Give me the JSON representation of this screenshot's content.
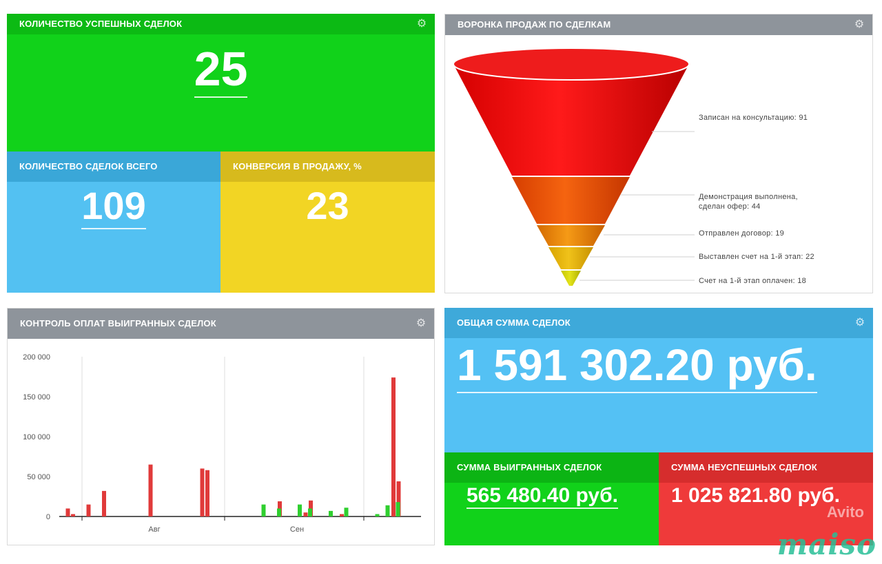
{
  "success_deals": {
    "title": "Количество успешных сделок",
    "value": "25"
  },
  "total_deals": {
    "title": "Количество сделок всего",
    "value": "109"
  },
  "conversion": {
    "title": "Конверсия в продажу, %",
    "value": "23"
  },
  "funnel": {
    "title": "Воронка продаж по сделкам",
    "stages": [
      {
        "label": "Записан на консультацию: 91",
        "value": 91
      },
      {
        "label": "Демонстрация выполнена, сделан офер: 44",
        "value": 44
      },
      {
        "label": "Отправлен договор: 19",
        "value": 19
      },
      {
        "label": "Выставлен счет на 1-й этап: 22",
        "value": 22
      },
      {
        "label": "Счет на 1-й этап оплачен: 18",
        "value": 18
      }
    ]
  },
  "payments": {
    "title": "Контроль оплат выигранных сделок",
    "chart_data": {
      "type": "bar",
      "ylim": [
        0,
        200000
      ],
      "y_ticks": [
        "200 000",
        "150 000",
        "100 000",
        "50 000",
        "0"
      ],
      "x_tick_labels": [
        "Авг",
        "Сен"
      ],
      "series": [
        {
          "color": "#e03a3a",
          "values": [
            [
              1,
              10000
            ],
            [
              2,
              3000
            ],
            [
              5,
              15000
            ],
            [
              8,
              32000
            ],
            [
              17,
              65000
            ],
            [
              27,
              60000
            ],
            [
              28,
              58000
            ],
            [
              41,
              0
            ],
            [
              42,
              19000
            ],
            [
              47,
              5000
            ],
            [
              48,
              20000
            ],
            [
              54,
              3000
            ],
            [
              64,
              174000
            ],
            [
              65,
              44000
            ]
          ]
        },
        {
          "color": "#2fcf2f",
          "values": [
            [
              39,
              15000
            ],
            [
              42,
              10000
            ],
            [
              46,
              15000
            ],
            [
              48,
              10000
            ],
            [
              52,
              7000
            ],
            [
              55,
              11000
            ],
            [
              61,
              3000
            ],
            [
              63,
              14000
            ],
            [
              65,
              18000
            ]
          ]
        }
      ]
    }
  },
  "total_sum": {
    "title": "Общая сумма сделок",
    "value": "1 591 302.20 руб."
  },
  "won_sum": {
    "title": "Сумма выигранных сделок",
    "value": "565 480.40 руб."
  },
  "lost_sum": {
    "title": "Сумма неуспешных сделок",
    "value": "1 025 821.80 руб."
  },
  "watermark": {
    "brand": "maiso",
    "avito": "Avito"
  },
  "icons": {
    "settings": "gear-icon"
  }
}
